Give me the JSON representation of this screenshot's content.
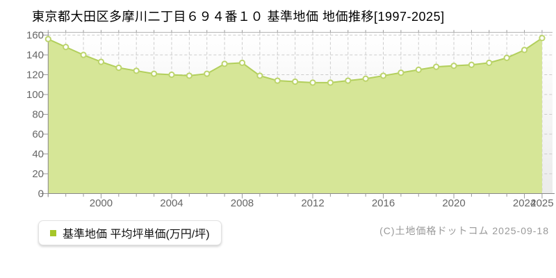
{
  "header": {
    "title": "東京都大田区多摩川二丁目６９４番１０ 基準地価 地価推移[1997-2025]"
  },
  "legend": {
    "label": "基準地価 平均坪単価(万円/坪)",
    "swatch_color": "#a6c629"
  },
  "footer": {
    "credit": "(C)土地価格ドットコム 2025-09-18"
  },
  "chart_data": {
    "type": "area",
    "title": "東京都大田区多摩川二丁目６９４番１０ 基準地価 地価推移[1997-2025]",
    "x": [
      1997,
      1998,
      1999,
      2000,
      2001,
      2002,
      2003,
      2004,
      2005,
      2006,
      2007,
      2008,
      2009,
      2010,
      2011,
      2012,
      2013,
      2014,
      2015,
      2016,
      2017,
      2018,
      2019,
      2020,
      2021,
      2022,
      2023,
      2024,
      2025
    ],
    "series": [
      {
        "name": "基準地価 平均坪単価(万円/坪)",
        "values": [
          156,
          148,
          140,
          133,
          127,
          124,
          121,
          120,
          119,
          121,
          131,
          132,
          119,
          114,
          113,
          112,
          112,
          114,
          116,
          119,
          122,
          125,
          128,
          129,
          130,
          132,
          137,
          145,
          157
        ]
      }
    ],
    "xlabel": "",
    "ylabel": "",
    "ylim": [
      0,
      160
    ],
    "y_ticks": [
      0,
      20,
      40,
      60,
      80,
      100,
      120,
      140,
      160
    ],
    "x_tick_years": [
      2000,
      2004,
      2008,
      2012,
      2016,
      2020,
      2024,
      2025
    ],
    "grid": true,
    "legend_position": "bottom-left",
    "colors": {
      "area_fill": "#d6e697",
      "line": "#b2cf5c",
      "marker_fill": "#ffffff",
      "marker_stroke": "#bcd46c",
      "grid": "#cccccc",
      "axis": "#999999",
      "tick_label": "#666666"
    }
  }
}
